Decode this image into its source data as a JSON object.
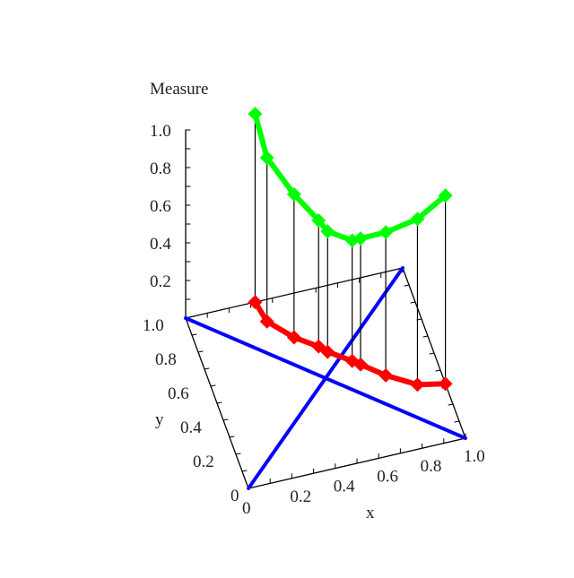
{
  "chart_data": {
    "type": "scatter3d",
    "title": "",
    "xlabel": "x",
    "ylabel": "y",
    "zlabel": "Measure",
    "xlim": [
      0,
      1
    ],
    "ylim": [
      0,
      1
    ],
    "zlim": [
      0,
      1
    ],
    "x_ticks": [
      "0",
      "0.2",
      "0.4",
      "0.6",
      "0.8",
      "1.0"
    ],
    "y_ticks": [
      "0",
      "0.2",
      "0.4",
      "0.6",
      "0.8",
      "1.0"
    ],
    "z_ticks": [
      "0.2",
      "0.4",
      "0.6",
      "0.8",
      "1.0"
    ],
    "points": [
      {
        "x": 0.32,
        "y": 1.0,
        "z": 1.0
      },
      {
        "x": 0.34,
        "y": 0.88,
        "z": 0.87
      },
      {
        "x": 0.43,
        "y": 0.76,
        "z": 0.76
      },
      {
        "x": 0.52,
        "y": 0.68,
        "z": 0.67
      },
      {
        "x": 0.55,
        "y": 0.64,
        "z": 0.64
      },
      {
        "x": 0.64,
        "y": 0.56,
        "z": 0.64
      },
      {
        "x": 0.67,
        "y": 0.53,
        "z": 0.67
      },
      {
        "x": 0.76,
        "y": 0.44,
        "z": 0.76
      },
      {
        "x": 0.88,
        "y": 0.35,
        "z": 0.88
      },
      {
        "x": 1.0,
        "y": 0.32,
        "z": 1.0
      }
    ],
    "lines": [
      {
        "from": [
          0,
          0
        ],
        "to": [
          1,
          1
        ],
        "color": "#0000ff"
      },
      {
        "from": [
          0,
          1
        ],
        "to": [
          1,
          0
        ],
        "color": "#0000ff"
      }
    ],
    "colors": {
      "measure": "#00ff00",
      "projection": "#ff0000",
      "stems": "#000000",
      "diagonals": "#0000ff"
    },
    "grid": false,
    "legend": "none"
  }
}
